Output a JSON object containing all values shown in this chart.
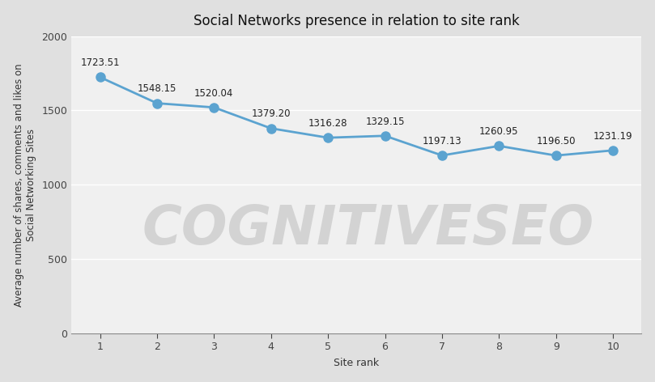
{
  "title": "Social Networks presence in relation to site rank",
  "xlabel": "Site rank",
  "ylabel": "Average number of shares, comments and likes on\nSocial Networking Sites",
  "x": [
    1,
    2,
    3,
    4,
    5,
    6,
    7,
    8,
    9,
    10
  ],
  "y": [
    1723.51,
    1548.15,
    1520.04,
    1379.2,
    1316.28,
    1329.15,
    1197.13,
    1260.95,
    1196.5,
    1231.19
  ],
  "labels": [
    "1723.51",
    "1548.15",
    "1520.04",
    "1379.20",
    "1316.28",
    "1329.15",
    "1197.13",
    "1260.95",
    "1196.50",
    "1231.19"
  ],
  "line_color": "#5ba3d0",
  "marker_color": "#5ba3d0",
  "plot_bg_color": "#f0f0f0",
  "outer_bg_color": "#e0e0e0",
  "grid_color": "#ffffff",
  "watermark": "COGNITIVESEO",
  "watermark_color": "#d0d0d0",
  "watermark_alpha": 0.9,
  "ylim": [
    0,
    2000
  ],
  "yticks": [
    0,
    500,
    1000,
    1500,
    2000
  ],
  "title_fontsize": 12,
  "label_fontsize": 8.5,
  "axis_label_fontsize": 9,
  "tick_fontsize": 9,
  "watermark_fontsize": 48,
  "line_width": 2.0,
  "marker_size": 8
}
